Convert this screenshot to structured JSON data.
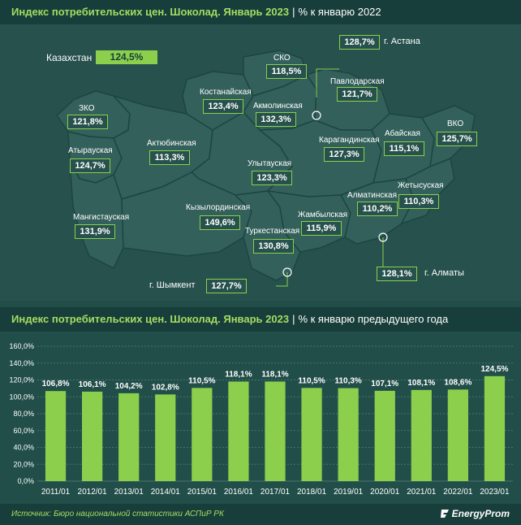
{
  "map_section": {
    "title": "Индекс потребительских цен. Шоколад. Январь 2023",
    "separator": "|",
    "subtitle": "% к январю 2022",
    "kazakhstan": {
      "label": "Казахстан",
      "value": "124,5%"
    },
    "regions": [
      {
        "name": "ЗКО",
        "value": "121,8%"
      },
      {
        "name": "Атырауская",
        "value": "124,7%"
      },
      {
        "name": "Мангистауская",
        "value": "131,9%"
      },
      {
        "name": "Актюбинская",
        "value": "113,3%"
      },
      {
        "name": "Костанайская",
        "value": "123,4%"
      },
      {
        "name": "СКО",
        "value": "118,5%"
      },
      {
        "name": "Акмолинская",
        "value": "132,3%"
      },
      {
        "name": "Павлодарская",
        "value": "121,7%"
      },
      {
        "name": "Карагандинская",
        "value": "127,3%"
      },
      {
        "name": "Улытауская",
        "value": "123,3%"
      },
      {
        "name": "Абайская",
        "value": "115,1%"
      },
      {
        "name": "ВКО",
        "value": "125,7%"
      },
      {
        "name": "Кызылординская",
        "value": "149,6%"
      },
      {
        "name": "Туркестанская",
        "value": "130,8%"
      },
      {
        "name": "Жамбылская",
        "value": "115,9%"
      },
      {
        "name": "Алматинская",
        "value": "110,2%"
      },
      {
        "name": "Жетысуская",
        "value": "110,3%"
      }
    ],
    "cities": [
      {
        "name": "г. Астана",
        "value": "128,7%"
      },
      {
        "name": "г. Алматы",
        "value": "128,1%"
      },
      {
        "name": "г. Шымкент",
        "value": "127,7%"
      }
    ]
  },
  "chart_section": {
    "title": "Индекс потребительских цен. Шоколад. Январь 2023",
    "separator": "|",
    "subtitle": "% к январю предыдущего года"
  },
  "chart_data": {
    "type": "bar",
    "categories": [
      "2011/01",
      "2012/01",
      "2013/01",
      "2014/01",
      "2015/01",
      "2016/01",
      "2017/01",
      "2018/01",
      "2019/01",
      "2020/01",
      "2021/01",
      "2022/01",
      "2023/01"
    ],
    "values": [
      106.8,
      106.1,
      104.2,
      102.8,
      110.5,
      118.1,
      118.1,
      110.5,
      110.3,
      107.1,
      108.1,
      108.6,
      124.5
    ],
    "value_labels": [
      "106,8%",
      "106,1%",
      "104,2%",
      "102,8%",
      "110,5%",
      "118,1%",
      "118,1%",
      "110,5%",
      "110,3%",
      "107,1%",
      "108,1%",
      "108,6%",
      "124,5%"
    ],
    "y_ticks": [
      "0,0%",
      "20,0%",
      "40,0%",
      "60,0%",
      "80,0%",
      "100,0%",
      "120,0%",
      "140,0%",
      "160,0%"
    ],
    "ylim": [
      0,
      160
    ],
    "grid": true,
    "bar_color": "#8ccf4d"
  },
  "footer": {
    "source": "Источник: Бюро национальной статистики АСПиР РК",
    "logo": "EnergyProm"
  },
  "colors": {
    "background": "#214e49",
    "title_bar": "#173e3a",
    "accent_green": "#8ccf4d",
    "title_green": "#a6dc63",
    "map_fill": "#2e5a56",
    "border": "#1d4541"
  }
}
